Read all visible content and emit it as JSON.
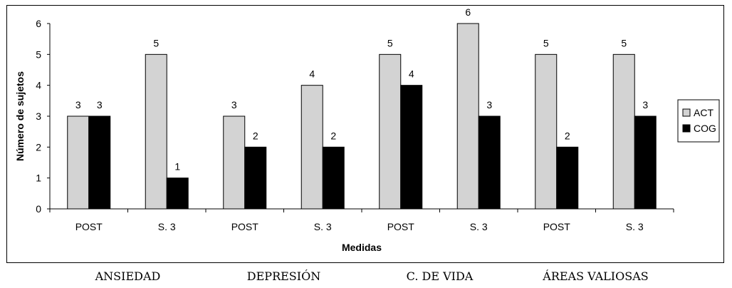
{
  "chart_data": {
    "type": "bar",
    "categories": [
      "POST",
      "S. 3",
      "POST",
      "S. 3",
      "POST",
      "S. 3",
      "POST",
      "S. 3"
    ],
    "series": [
      {
        "name": "ACT",
        "values": [
          3,
          5,
          3,
          4,
          5,
          6,
          5,
          5
        ],
        "color": "#d3d3d3"
      },
      {
        "name": "COG",
        "values": [
          3,
          1,
          2,
          2,
          4,
          3,
          2,
          3
        ],
        "color": "#000000"
      }
    ],
    "xlabel": "Medidas",
    "ylabel": "Número de sujetos",
    "ylim": [
      0,
      6
    ],
    "yticks": [
      "0",
      "1",
      "2",
      "3",
      "4",
      "5",
      "6"
    ],
    "data_labels": true,
    "grid": false,
    "legend_position": "right",
    "groups": [
      "ANSIEDAD",
      "DEPRESIÓN",
      "C. DE VIDA",
      "ÁREAS VALIOSAS"
    ]
  }
}
